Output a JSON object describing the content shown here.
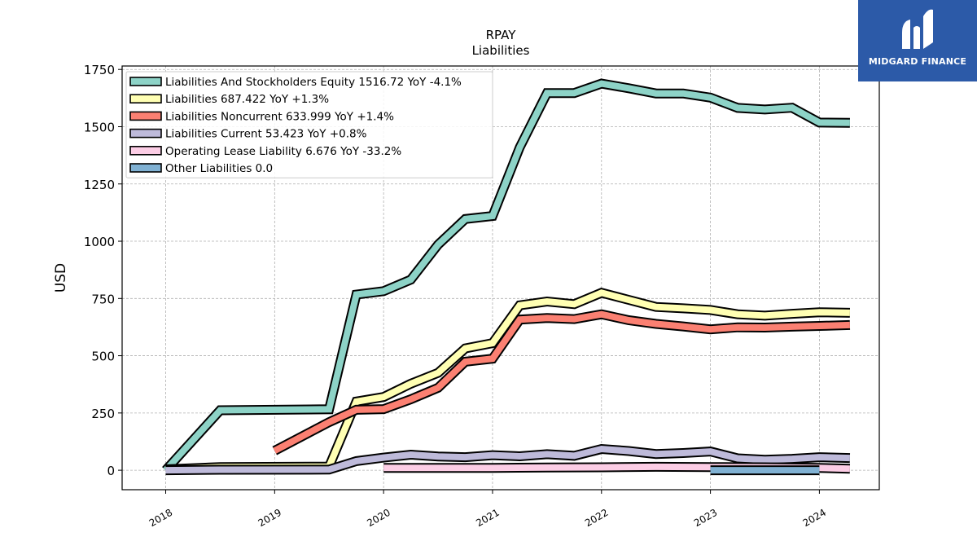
{
  "chart_data": {
    "type": "line",
    "title": "RPAY",
    "subtitle": "Liabilities",
    "ylabel": "USD",
    "xlabel": "",
    "ylim": [
      -85,
      1765
    ],
    "xlim": [
      2017.6,
      2024.55
    ],
    "yticks": [
      0,
      250,
      500,
      750,
      1000,
      1250,
      1500,
      1750
    ],
    "ytick_labels": [
      "0",
      "250",
      "500",
      "750",
      "1000",
      "1250",
      "1500",
      "1750"
    ],
    "xticks": [
      2018,
      2019,
      2020,
      2021,
      2022,
      2023,
      2024
    ],
    "xtick_labels": [
      "2018",
      "2019",
      "2020",
      "2021",
      "2022",
      "2023",
      "2024"
    ],
    "grid": true,
    "legend_position": "upper-left",
    "series": [
      {
        "name": "Liabilities And Stockholders Equity",
        "legend_label": "Liabilities And Stockholders Equity  1516.72 YoY -4.1%",
        "color": "#8dd3c7",
        "points": [
          [
            2018.0,
            0
          ],
          [
            2018.5,
            262
          ],
          [
            2019.5,
            266
          ],
          [
            2019.75,
            767
          ],
          [
            2020.0,
            782
          ],
          [
            2020.25,
            832
          ],
          [
            2020.5,
            985
          ],
          [
            2020.75,
            1097
          ],
          [
            2021.0,
            1110
          ],
          [
            2021.25,
            1410
          ],
          [
            2021.5,
            1647
          ],
          [
            2021.75,
            1647
          ],
          [
            2022.0,
            1688
          ],
          [
            2022.25,
            1668
          ],
          [
            2022.5,
            1645
          ],
          [
            2022.75,
            1645
          ],
          [
            2023.0,
            1627
          ],
          [
            2023.25,
            1582
          ],
          [
            2023.5,
            1575
          ],
          [
            2023.75,
            1583
          ],
          [
            2024.0,
            1518
          ],
          [
            2024.28,
            1516.72
          ]
        ]
      },
      {
        "name": "Liabilities",
        "legend_label": "Liabilities  687.422 YoY +1.3%",
        "color": "#ffffb3",
        "points": [
          [
            2018.0,
            4
          ],
          [
            2018.5,
            14
          ],
          [
            2019.5,
            16
          ],
          [
            2019.75,
            300
          ],
          [
            2020.0,
            320
          ],
          [
            2020.25,
            378
          ],
          [
            2020.5,
            425
          ],
          [
            2020.75,
            532
          ],
          [
            2021.0,
            555
          ],
          [
            2021.25,
            720
          ],
          [
            2021.5,
            737
          ],
          [
            2021.75,
            725
          ],
          [
            2022.0,
            775
          ],
          [
            2022.25,
            744
          ],
          [
            2022.5,
            713
          ],
          [
            2022.75,
            707
          ],
          [
            2023.0,
            700
          ],
          [
            2023.25,
            681
          ],
          [
            2023.5,
            675
          ],
          [
            2023.75,
            683
          ],
          [
            2024.0,
            690
          ],
          [
            2024.28,
            687.422
          ]
        ]
      },
      {
        "name": "Liabilities Noncurrent",
        "legend_label": "Liabilities Noncurrent  633.999 YoY +1.4%",
        "color": "#fb8072",
        "points": [
          [
            2019.0,
            85
          ],
          [
            2019.5,
            210
          ],
          [
            2019.75,
            264
          ],
          [
            2020.0,
            267
          ],
          [
            2020.25,
            310
          ],
          [
            2020.5,
            360
          ],
          [
            2020.75,
            474
          ],
          [
            2021.0,
            487
          ],
          [
            2021.25,
            658
          ],
          [
            2021.5,
            665
          ],
          [
            2021.75,
            660
          ],
          [
            2022.0,
            681
          ],
          [
            2022.25,
            655
          ],
          [
            2022.5,
            639
          ],
          [
            2022.75,
            628
          ],
          [
            2023.0,
            615
          ],
          [
            2023.25,
            624
          ],
          [
            2023.5,
            623
          ],
          [
            2023.75,
            627
          ],
          [
            2024.0,
            630
          ],
          [
            2024.28,
            633.999
          ]
        ]
      },
      {
        "name": "Liabilities Current",
        "legend_label": "Liabilities Current  53.423 YoY +0.8%",
        "color": "#bebada",
        "points": [
          [
            2018.0,
            0
          ],
          [
            2018.5,
            2
          ],
          [
            2019.5,
            3
          ],
          [
            2019.75,
            40
          ],
          [
            2020.0,
            55
          ],
          [
            2020.25,
            68
          ],
          [
            2020.5,
            60
          ],
          [
            2020.75,
            57
          ],
          [
            2021.0,
            66
          ],
          [
            2021.25,
            61
          ],
          [
            2021.5,
            70
          ],
          [
            2021.75,
            63
          ],
          [
            2022.0,
            93
          ],
          [
            2022.25,
            84
          ],
          [
            2022.5,
            71
          ],
          [
            2022.75,
            75
          ],
          [
            2023.0,
            82
          ],
          [
            2023.25,
            52
          ],
          [
            2023.5,
            46
          ],
          [
            2023.75,
            50
          ],
          [
            2024.0,
            57
          ],
          [
            2024.28,
            53.423
          ]
        ]
      },
      {
        "name": "Operating Lease Liability",
        "legend_label": "Operating Lease Liability  6.676 YoY -33.2%",
        "color": "#fccde5",
        "points": [
          [
            2020.0,
            10
          ],
          [
            2021.0,
            10
          ],
          [
            2021.5,
            12
          ],
          [
            2022.0,
            13
          ],
          [
            2022.5,
            15
          ],
          [
            2023.0,
            14
          ],
          [
            2023.5,
            13
          ],
          [
            2024.0,
            10
          ],
          [
            2024.28,
            6.676
          ]
        ]
      },
      {
        "name": "Other Liabilities",
        "legend_label": "Other Liabilities  0.0",
        "color": "#80b1d3",
        "points": [
          [
            2023.0,
            0
          ],
          [
            2024.0,
            0
          ]
        ]
      }
    ]
  },
  "logo": {
    "text": "MIDGARD FINANCE",
    "background": "#2c5aa8"
  }
}
